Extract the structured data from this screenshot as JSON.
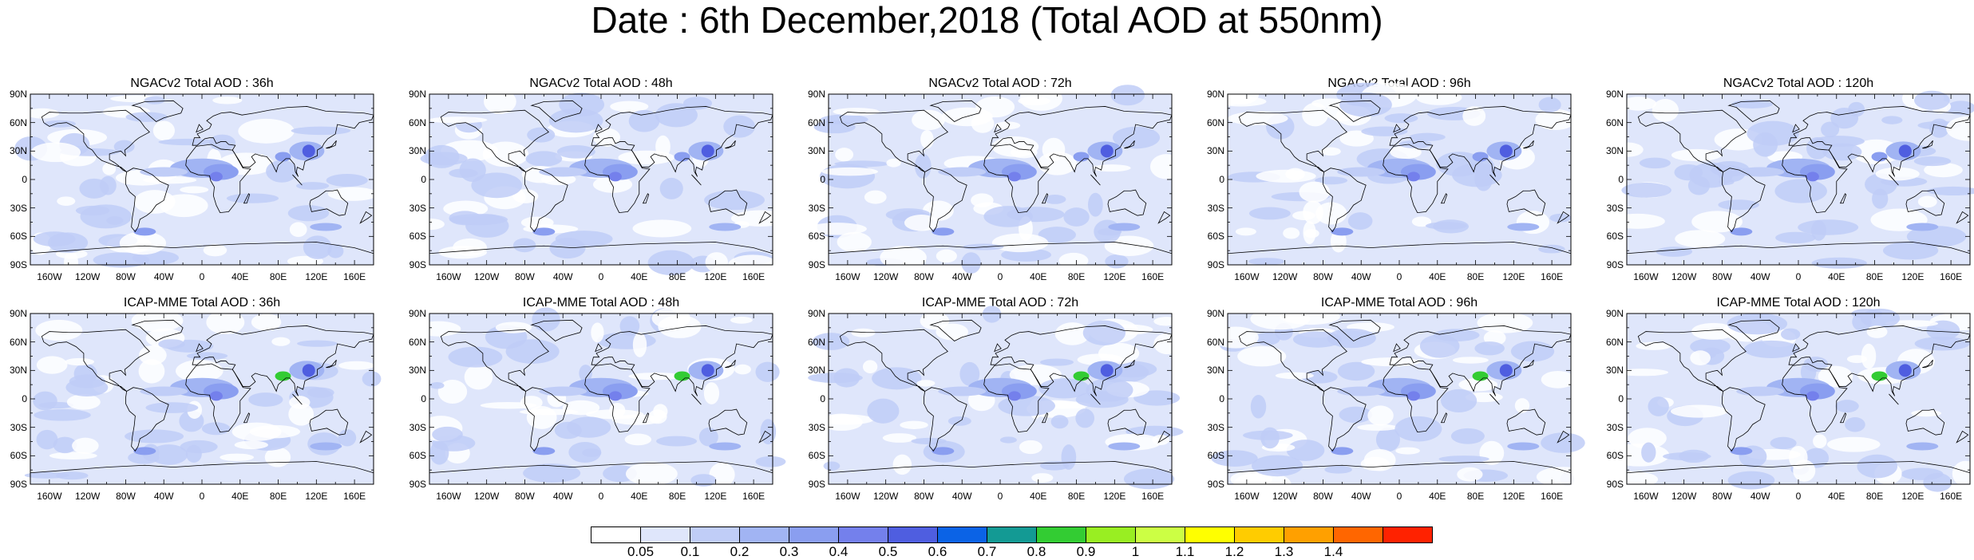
{
  "title": "Date : 6th December,2018 (Total AOD at 550nm)",
  "rows": [
    {
      "panels": [
        {
          "title": "NGACv2 Total AOD : 36h"
        },
        {
          "title": "NGACv2 Total AOD : 48h"
        },
        {
          "title": "NGACv2 Total AOD : 72h"
        },
        {
          "title": "NGACv2 Total AOD : 96h"
        },
        {
          "title": "NGACv2 Total AOD : 120h"
        }
      ]
    },
    {
      "panels": [
        {
          "title": "ICAP-MME Total AOD : 36h"
        },
        {
          "title": "ICAP-MME Total AOD : 48h"
        },
        {
          "title": "ICAP-MME Total AOD : 72h"
        },
        {
          "title": "ICAP-MME Total AOD : 96h"
        },
        {
          "title": "ICAP-MME Total AOD : 120h"
        }
      ]
    }
  ],
  "lat_labels": [
    "90N",
    "60N",
    "30N",
    "0",
    "30S",
    "60S",
    "90S"
  ],
  "lon_labels": [
    "160W",
    "120W",
    "80W",
    "40W",
    "0",
    "40E",
    "80E",
    "120E",
    "160E"
  ],
  "colorbar": {
    "labels": [
      "0.05",
      "0.1",
      "0.2",
      "0.3",
      "0.4",
      "0.5",
      "0.6",
      "0.7",
      "0.8",
      "0.9",
      "1",
      "1.1",
      "1.2",
      "1.3",
      "1.4"
    ],
    "colors": [
      "#ffffff",
      "#dfe6fb",
      "#c0cdf7",
      "#a1b4f3",
      "#8a9ef0",
      "#7480ec",
      "#4f5ee0",
      "#0b63e6",
      "#139a94",
      "#33cc33",
      "#99ee22",
      "#ccff44",
      "#ffff00",
      "#ffcc00",
      "#ffa000",
      "#ff6600",
      "#ff2200"
    ]
  }
}
